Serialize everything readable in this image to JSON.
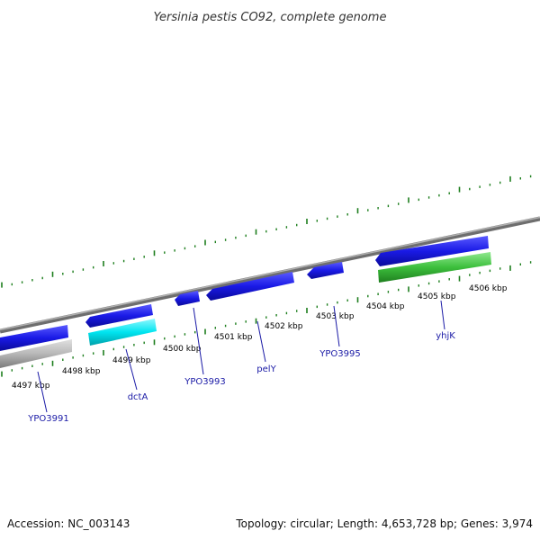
{
  "title": "Yersinia pestis CO92, complete genome",
  "footer": {
    "accession": "Accession: NC_003143",
    "summary": "Topology: circular; Length: 4,653,728 bp; Genes: 3,974"
  },
  "colors": {
    "backbone": "#8a8a8a",
    "tick": "#1e7f1e",
    "blue_gene": "#1a1ae0",
    "cyan_gene": "#00e5f0",
    "grey_gene": "#b5b5b5",
    "green_gene": "#3cbf3c",
    "label": "#1a1aa6"
  },
  "scale_labels": [
    "4497 kbp",
    "4498 kbp",
    "4499 kbp",
    "4500 kbp",
    "4501 kbp",
    "4502 kbp",
    "4503 kbp",
    "4504 kbp",
    "4505 kbp",
    "4506 kbp"
  ],
  "gene_labels": [
    "YPO3991",
    "dctA",
    "YPO3993",
    "pelY",
    "YPO3995",
    "yhjK"
  ]
}
